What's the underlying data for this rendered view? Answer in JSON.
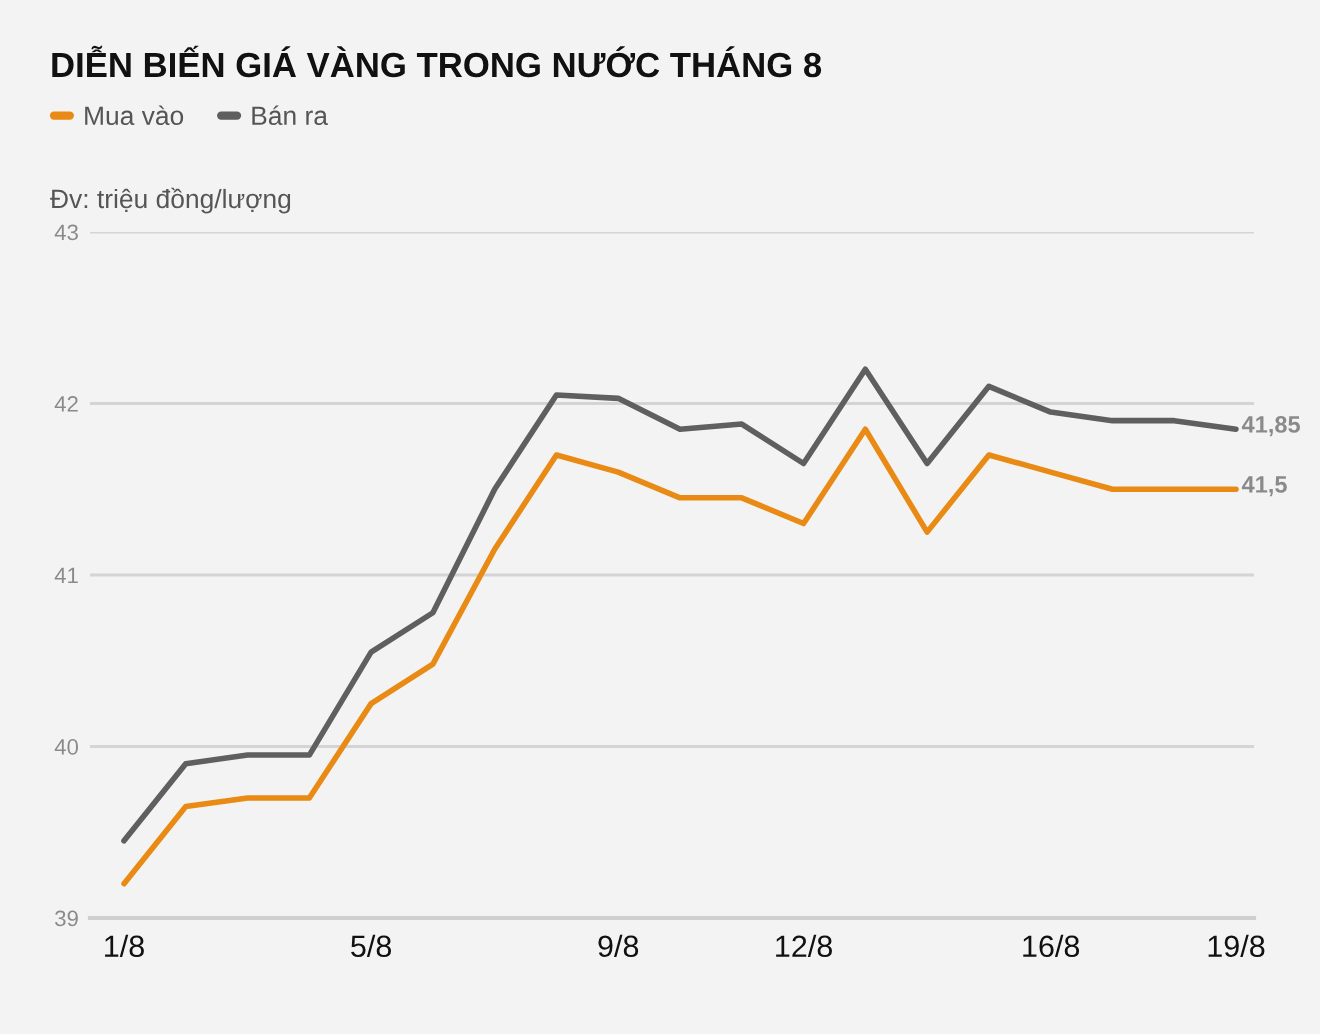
{
  "chart_data": {
    "type": "line",
    "title": "DIỄN BIẾN GIÁ VÀNG TRONG NƯỚC THÁNG 8",
    "ylabel": "Đv: triệu đồng/lượng",
    "categories": [
      "1/8",
      null,
      null,
      null,
      "5/8",
      null,
      null,
      null,
      "9/8",
      null,
      null,
      "12/8",
      null,
      null,
      null,
      "16/8",
      null,
      null,
      "19/8"
    ],
    "series": [
      {
        "name": "Mua vào",
        "color": "#e98a15",
        "values": [
          39.2,
          39.65,
          39.7,
          39.7,
          40.25,
          40.48,
          41.15,
          41.7,
          41.6,
          41.45,
          41.45,
          41.3,
          41.85,
          41.25,
          41.7,
          41.6,
          41.5,
          41.5,
          41.5
        ],
        "value_labels": [
          null,
          null,
          null,
          null,
          null,
          null,
          null,
          null,
          null,
          null,
          null,
          null,
          null,
          null,
          null,
          null,
          null,
          null,
          "41,5"
        ]
      },
      {
        "name": "Bán ra",
        "color": "#5f5f5f",
        "values": [
          39.45,
          39.9,
          39.95,
          39.95,
          40.55,
          40.78,
          41.5,
          42.05,
          42.03,
          41.85,
          41.88,
          41.65,
          42.2,
          41.65,
          42.1,
          41.95,
          41.9,
          41.9,
          41.85
        ],
        "value_labels": [
          null,
          null,
          null,
          null,
          null,
          null,
          null,
          null,
          null,
          null,
          null,
          null,
          null,
          null,
          null,
          null,
          null,
          null,
          "41,85"
        ]
      }
    ],
    "ylim": [
      39,
      43
    ],
    "yticks": [
      39,
      40,
      41,
      42,
      43
    ],
    "grid": "y",
    "legend": "top left",
    "line_style": "solid"
  }
}
